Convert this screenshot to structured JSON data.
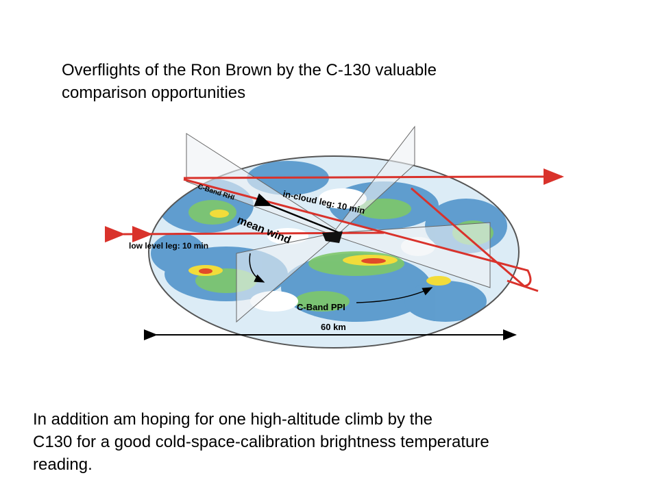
{
  "title": {
    "lines": [
      "Overflights of the Ron Brown by the C-130 valuable",
      "comparison opportunities"
    ]
  },
  "figure": {
    "labels": {
      "rhi": "C-Band RHI",
      "in_cloud": "in-cloud leg: 10 min",
      "low_level": "low level leg: 10 min",
      "wind": "mean wind",
      "ppi": "C-Band PPI",
      "scale": "60 km"
    }
  },
  "body": {
    "lines": [
      "In addition am hoping for one high-altitude climb by the",
      "C130 for a good cold-space-calibration brightness temperature",
      "reading."
    ]
  }
}
